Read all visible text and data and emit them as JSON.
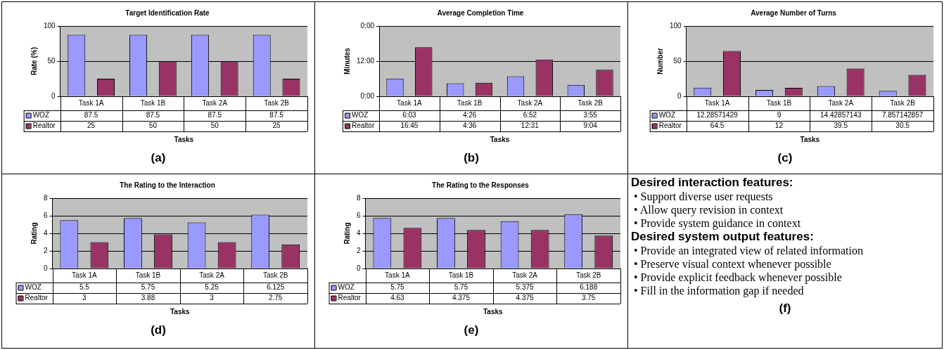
{
  "chart_data": [
    {
      "type": "bar",
      "title": "Target Identification Rate",
      "xlabel": "Tasks",
      "ylabel": "Rate (%)",
      "categories": [
        "Task 1A",
        "Task 1B",
        "Task 2A",
        "Task 2B"
      ],
      "series": [
        {
          "name": "WOZ",
          "color": "#9999ff",
          "values": [
            87.5,
            87.5,
            87.5,
            87.5
          ]
        },
        {
          "name": "Realtor",
          "color": "#993366",
          "values": [
            25,
            50,
            50,
            25
          ]
        }
      ],
      "ylim": [
        0,
        100
      ],
      "yticks": [
        0,
        50,
        100
      ],
      "grid": "y",
      "legend": "bottom left",
      "data_labels": true,
      "annotations": [
        "(a)"
      ]
    },
    {
      "type": "bar",
      "title": "Average Completion Time",
      "xlabel": "Tasks",
      "ylabel": "Minutes",
      "categories": [
        "Task 1A",
        "Task 1B",
        "Task 2A",
        "Task 2B"
      ],
      "series": [
        {
          "name": "WOZ",
          "color": "#9999ff",
          "values": [
            6.05,
            4.433,
            6.867,
            3.917
          ],
          "value_labels": [
            "6:03",
            "4:26",
            "6:52",
            "3:55"
          ]
        },
        {
          "name": "Realtor",
          "color": "#993366",
          "values": [
            16.75,
            4.6,
            12.517,
            9.067
          ],
          "value_labels": [
            "16:45",
            "4:36",
            "12:31",
            "9:04"
          ]
        }
      ],
      "ylim": [
        0,
        24
      ],
      "yticks": [
        {
          "value": 0,
          "label": "0:00"
        },
        {
          "value": 12,
          "label": "12:00"
        },
        {
          "value": 24,
          "label": "0:00"
        }
      ],
      "grid": "y",
      "legend": "bottom left",
      "annotations": [
        "(b)"
      ]
    },
    {
      "type": "bar",
      "title": "Average Number of Turns",
      "xlabel": "Tasks",
      "ylabel": "Number",
      "categories": [
        "Task 1A",
        "Task 1B",
        "Task 2A",
        "Task 2B"
      ],
      "series": [
        {
          "name": "WOZ",
          "color": "#9999ff",
          "values": [
            12.28571429,
            9,
            14.42857143,
            7.857142857
          ]
        },
        {
          "name": "Realtor",
          "color": "#993366",
          "values": [
            64.5,
            12,
            39.5,
            30.5
          ]
        }
      ],
      "ylim": [
        0,
        100
      ],
      "yticks": [
        0,
        50,
        100
      ],
      "grid": "y",
      "legend": "bottom left",
      "data_labels": true,
      "annotations": [
        "(c)"
      ]
    },
    {
      "type": "bar",
      "title": "The Rating to the Interaction",
      "xlabel": "Tasks",
      "ylabel": "Rating",
      "categories": [
        "Task 1A",
        "Task 1B",
        "Task 2A",
        "Task 2B"
      ],
      "series": [
        {
          "name": "WOZ",
          "color": "#9999ff",
          "values": [
            5.5,
            5.75,
            5.25,
            6.125
          ]
        },
        {
          "name": "Realtor",
          "color": "#993366",
          "values": [
            3,
            3.88,
            3,
            2.75
          ]
        }
      ],
      "ylim": [
        0,
        8
      ],
      "yticks": [
        0,
        2,
        4,
        6,
        8
      ],
      "grid": "y",
      "legend": "bottom left",
      "data_labels": true,
      "annotations": [
        "(d)"
      ]
    },
    {
      "type": "bar",
      "title": "The Rating to the Responses",
      "xlabel": "Tasks",
      "ylabel": "Rating",
      "categories": [
        "Task 1A",
        "Task 1B",
        "Task 2A",
        "Task 2B"
      ],
      "series": [
        {
          "name": "WOZ",
          "color": "#9999ff",
          "values": [
            5.75,
            5.75,
            5.375,
            6.188
          ]
        },
        {
          "name": "Realtor",
          "color": "#993366",
          "values": [
            4.63,
            4.375,
            4.375,
            3.75
          ]
        }
      ],
      "ylim": [
        0,
        8
      ],
      "yticks": [
        0,
        2,
        4,
        6,
        8
      ],
      "grid": "y",
      "legend": "bottom left",
      "data_labels": true,
      "annotations": [
        "(e)"
      ]
    },
    {
      "type": "other",
      "title": "Desired interaction features:",
      "annotations": [
        "• Support diverse user requests",
        "• Allow query revision in context",
        "• Provide system guidance in context"
      ]
    },
    {
      "type": "other",
      "title": "Desired system output features:",
      "annotations": [
        "• Provide an integrated view of related information",
        "• Preserve visual context whenever possible",
        "• Provide explicit feedback whenever possible",
        "• Fill in the information gap if needed",
        "(f)"
      ]
    }
  ]
}
